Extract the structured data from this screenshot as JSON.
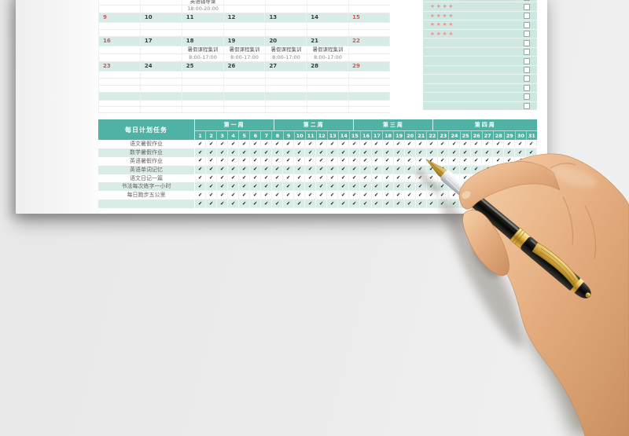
{
  "colors": {
    "header_teal": "#4fb2a4",
    "task_row_teal": "#d9ece8",
    "calendar_teal": "#d8ebe7",
    "panel_mint": "#cfe7e1",
    "red_date": "#d9534f",
    "star_red": "#ec8f8f",
    "check": "#1f1f1f"
  },
  "calendar": {
    "rows": [
      {
        "type": "event",
        "h": 19,
        "cls": "clip",
        "texts": {
          "2": "英语辅导课"
        }
      },
      {
        "type": "event",
        "h": 10,
        "time": true,
        "texts": {
          "2": "18:00-20:00"
        }
      },
      {
        "type": "dates",
        "h": 12,
        "cells": [
          "9",
          "10",
          "11",
          "12",
          "13",
          "14",
          "15"
        ],
        "red": [
          0,
          6
        ]
      },
      {
        "type": "blank",
        "h": 9
      },
      {
        "type": "blank",
        "h": 9
      },
      {
        "type": "dates",
        "h": 12,
        "cells": [
          "16",
          "17",
          "18",
          "19",
          "20",
          "21",
          "22"
        ],
        "red": [
          0,
          6
        ]
      },
      {
        "type": "event",
        "h": 10,
        "texts": {
          "2": "暑假课程集训",
          "3": "暑假课程集训",
          "4": "暑假课程集训",
          "5": "暑假课程集训"
        }
      },
      {
        "type": "event",
        "h": 10,
        "time": true,
        "texts": {
          "2": "8:00-17:00",
          "3": "8:00-17:00",
          "4": "8:00-17:00",
          "5": "8:00-17:00"
        }
      },
      {
        "type": "dates",
        "h": 12,
        "cells": [
          "23",
          "24",
          "25",
          "26",
          "27",
          "28",
          "29"
        ],
        "red": [
          0,
          6
        ]
      },
      {
        "type": "blank",
        "h": 9
      },
      {
        "type": "blank",
        "h": 9
      },
      {
        "type": "blank",
        "h": 9
      },
      {
        "type": "dates",
        "h": 10,
        "cells": [
          "",
          "",
          "",
          "",
          "",
          "",
          ""
        ],
        "red": []
      },
      {
        "type": "blank",
        "h": 8
      },
      {
        "type": "blank",
        "h": 8
      }
    ]
  },
  "notes_panel": {
    "star_glyph": "★★★★",
    "check_glyph": "✓",
    "rows": [
      {
        "stars": true,
        "checked": true,
        "smudge": true
      },
      {
        "stars": true
      },
      {
        "stars": true
      },
      {
        "stars": true
      },
      {
        "stars": true
      },
      {},
      {},
      {},
      {},
      {},
      {},
      {},
      {}
    ]
  },
  "task_table": {
    "corner_header": "每日计划任务",
    "week_headers": [
      {
        "label": "第一周",
        "days": 7
      },
      {
        "label": "第二周",
        "days": 7
      },
      {
        "label": "第三周",
        "days": 7
      },
      {
        "label": "第四周",
        "days": 10
      }
    ],
    "day_numbers": [
      "1",
      "2",
      "3",
      "4",
      "5",
      "6",
      "7",
      "8",
      "9",
      "10",
      "11",
      "12",
      "13",
      "14",
      "15",
      "16",
      "17",
      "18",
      "19",
      "20",
      "21",
      "22",
      "23",
      "24",
      "25",
      "26",
      "27",
      "28",
      "29",
      "30",
      "31"
    ],
    "tasks": [
      "语文暑假作业",
      "数学暑假作业",
      "英语暑假作业",
      "英语单词记忆",
      "语文日记一篇",
      "书法每次练字一小时",
      "每日跑步五公里",
      ""
    ],
    "check_glyph": "✔"
  }
}
